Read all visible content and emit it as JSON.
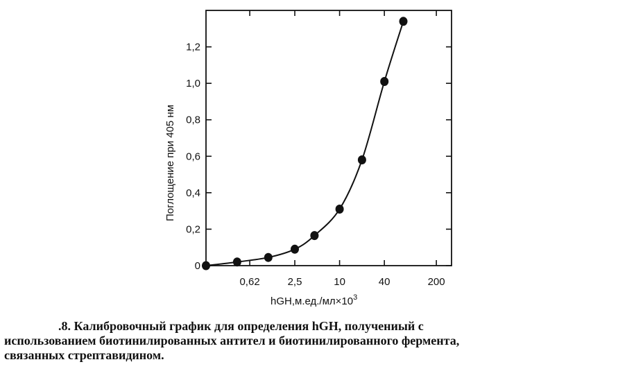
{
  "chart_data": {
    "type": "line",
    "xlabel": "hGH,м.ед./мл×10",
    "xlabel_sup": "3",
    "ylabel": "Поглощение при 405 нм",
    "x_scale": "log",
    "xlim": [
      0.16,
      320
    ],
    "ylim": [
      0,
      1.4
    ],
    "x_ticks": [
      0.62,
      2.5,
      10,
      40,
      200
    ],
    "x_tick_labels": [
      "0,62",
      "2,5",
      "10",
      "40",
      "200"
    ],
    "y_ticks": [
      0,
      0.2,
      0.4,
      0.6,
      0.8,
      1.0,
      1.2
    ],
    "y_tick_labels": [
      "0",
      "0,2",
      "0,4",
      "0,6",
      "0,8",
      "1,0",
      "1,2"
    ],
    "grid": false,
    "series": [
      {
        "x": [
          0.16,
          0.42,
          1.1,
          2.5,
          4.6,
          10,
          20,
          40,
          72
        ],
        "y": [
          0.0,
          0.02,
          0.045,
          0.09,
          0.165,
          0.31,
          0.58,
          1.01,
          1.34
        ]
      }
    ]
  },
  "caption": {
    "line1": ".8. Калибровочный график для определения hGH, получениый с",
    "line2": "использованием биотинилированных антител и биотинилированного фермента,",
    "line3": "связанных стрептавидином."
  }
}
